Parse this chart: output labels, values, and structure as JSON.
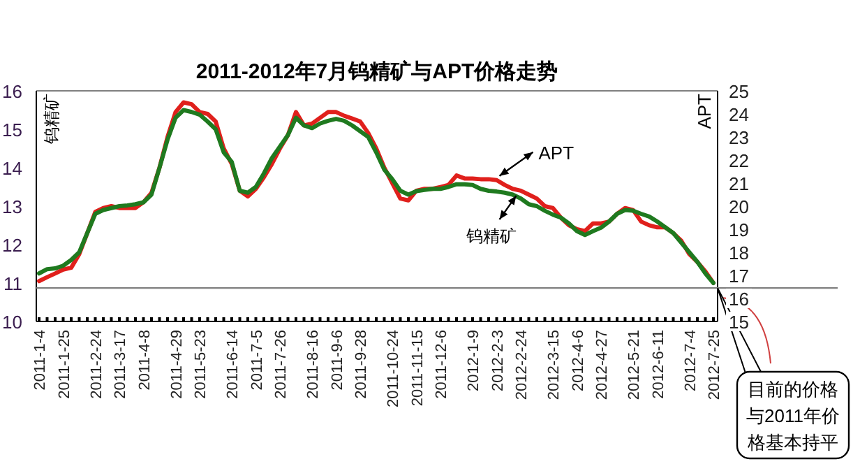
{
  "chart_data": {
    "type": "line",
    "title": "2011-2012年7月钨精矿与APT价格走势",
    "ylabel": "钨精矿",
    "y2label": "APT",
    "categories": [
      "2011-1-4",
      null,
      null,
      "2011-1-25",
      null,
      null,
      null,
      "2011-2-24",
      null,
      null,
      "2011-3-17",
      null,
      null,
      "2011-4-8",
      null,
      null,
      null,
      "2011-4-29",
      null,
      null,
      "2011-5-23",
      null,
      null,
      null,
      "2011-6-14",
      null,
      null,
      "2011-7-5",
      null,
      null,
      "2011-7-26",
      null,
      null,
      null,
      "2011-8-16",
      null,
      null,
      "2011-9-6",
      null,
      null,
      "2011-9-28",
      null,
      null,
      null,
      "2011-10-24",
      null,
      null,
      "2011-11-15",
      null,
      null,
      "2011-12-6",
      null,
      null,
      null,
      "2012-1-9",
      null,
      null,
      "2012-2-3",
      null,
      null,
      "2012-2-24",
      null,
      null,
      null,
      "2012-3-15",
      null,
      null,
      "2012-4-6",
      null,
      null,
      "2012-4-27",
      null,
      null,
      null,
      "2012-5-21",
      null,
      null,
      "2012-6-11",
      null,
      null,
      null,
      "2012-7-4",
      null,
      null,
      "2012-7-25"
    ],
    "series": [
      {
        "name": "APT",
        "color": "#e0201c",
        "axis": "y2",
        "values": [
          16.75,
          16.92,
          17.08,
          17.25,
          17.33,
          17.92,
          18.83,
          19.75,
          19.92,
          20.0,
          19.92,
          19.92,
          19.92,
          20.17,
          20.58,
          21.67,
          23.0,
          24.08,
          24.5,
          24.42,
          24.08,
          24.0,
          23.67,
          22.5,
          21.83,
          20.67,
          20.42,
          20.75,
          21.25,
          21.83,
          22.5,
          23.08,
          24.08,
          23.5,
          23.58,
          23.83,
          24.08,
          24.08,
          23.92,
          23.8,
          23.67,
          23.17,
          22.5,
          21.67,
          21.0,
          20.33,
          20.25,
          20.67,
          20.75,
          20.75,
          20.83,
          20.92,
          21.33,
          21.2,
          21.2,
          21.17,
          21.17,
          21.13,
          20.92,
          20.75,
          20.67,
          20.5,
          20.33,
          20.0,
          19.92,
          19.5,
          19.17,
          19.0,
          18.92,
          19.25,
          19.25,
          19.33,
          19.67,
          19.92,
          19.83,
          19.33,
          19.17,
          19.08,
          19.08,
          18.83,
          18.5,
          17.92,
          17.58,
          17.17,
          16.67
        ]
      },
      {
        "name": "钨精矿",
        "color": "#1f7a1f",
        "axis": "y",
        "values": [
          11.25,
          11.36,
          11.38,
          11.45,
          11.6,
          11.8,
          12.3,
          12.8,
          12.9,
          12.95,
          13.0,
          13.02,
          13.05,
          13.1,
          13.3,
          14.0,
          14.73,
          15.3,
          15.5,
          15.45,
          15.38,
          15.2,
          15.0,
          14.4,
          14.15,
          13.4,
          13.35,
          13.5,
          13.85,
          14.25,
          14.55,
          14.85,
          15.3,
          15.1,
          15.03,
          15.15,
          15.22,
          15.27,
          15.22,
          15.1,
          14.95,
          14.8,
          14.4,
          13.95,
          13.7,
          13.4,
          13.3,
          13.39,
          13.42,
          13.45,
          13.45,
          13.5,
          13.57,
          13.57,
          13.55,
          13.45,
          13.4,
          13.38,
          13.35,
          13.3,
          13.2,
          13.05,
          13.0,
          12.88,
          12.78,
          12.7,
          12.55,
          12.35,
          12.25,
          12.35,
          12.44,
          12.6,
          12.8,
          12.9,
          12.88,
          12.8,
          12.73,
          12.6,
          12.45,
          12.3,
          12.05,
          11.8,
          11.55,
          11.25,
          11.0
        ]
      }
    ],
    "ylim": [
      10,
      16
    ],
    "yticks": [
      10,
      11,
      12,
      13,
      14,
      15,
      16
    ],
    "y2lim": [
      15,
      25
    ],
    "y2ticks": [
      15,
      16,
      17,
      18,
      19,
      20,
      21,
      22,
      23,
      24,
      25
    ],
    "ref_lines": [
      {
        "axis": "y",
        "value": 10.87,
        "color": "#808080"
      }
    ],
    "annotations": [
      "目前的价格与2011年价格基本持平"
    ],
    "marker": "none",
    "line_style": "solid"
  }
}
